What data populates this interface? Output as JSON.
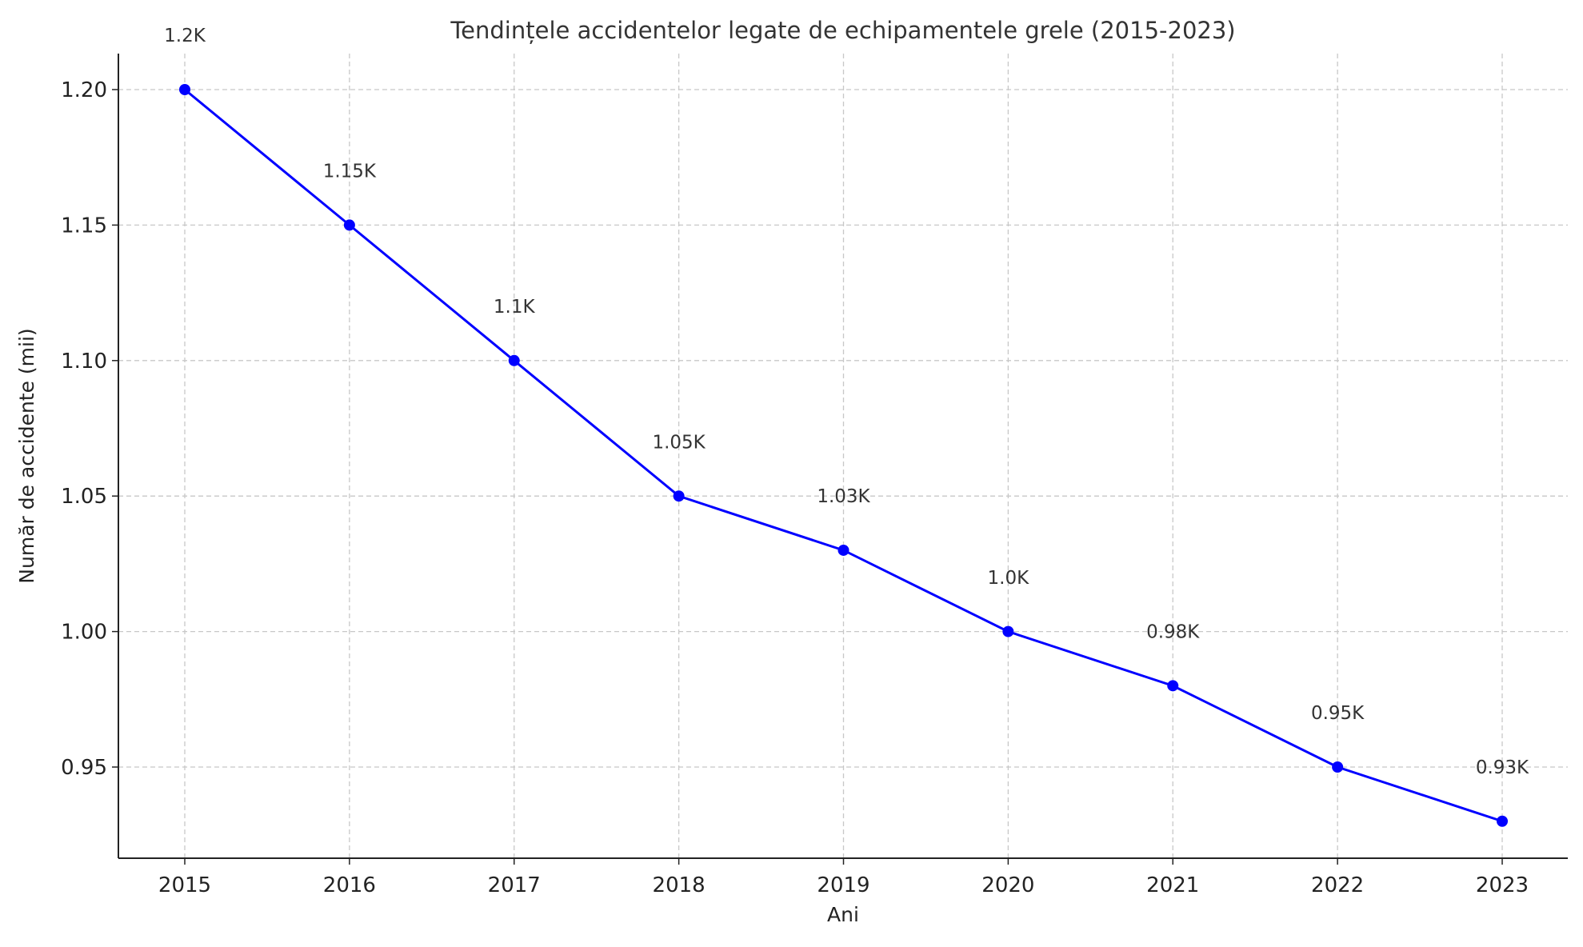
{
  "chart_data": {
    "type": "line",
    "title": "Tendințele accidentelor legate de echipamentele grele (2015-2023)",
    "xlabel": "Ani",
    "ylabel": "Număr de accidente (mii)",
    "x": [
      "2015",
      "2016",
      "2017",
      "2018",
      "2019",
      "2020",
      "2021",
      "2022",
      "2023"
    ],
    "series": [
      {
        "name": "Accidente",
        "values": [
          1.2,
          1.15,
          1.1,
          1.05,
          1.03,
          1.0,
          0.98,
          0.95,
          0.93
        ],
        "color": "#0000ff"
      }
    ],
    "data_labels": [
      "1.2K",
      "1.15K",
      "1.1K",
      "1.05K",
      "1.03K",
      "1.0K",
      "0.98K",
      "0.95K",
      "0.93K"
    ],
    "yticks": [
      "0.95",
      "1.00",
      "1.05",
      "1.10",
      "1.15",
      "1.20"
    ],
    "ylim": [
      0.9165,
      1.2135
    ],
    "grid": true
  }
}
